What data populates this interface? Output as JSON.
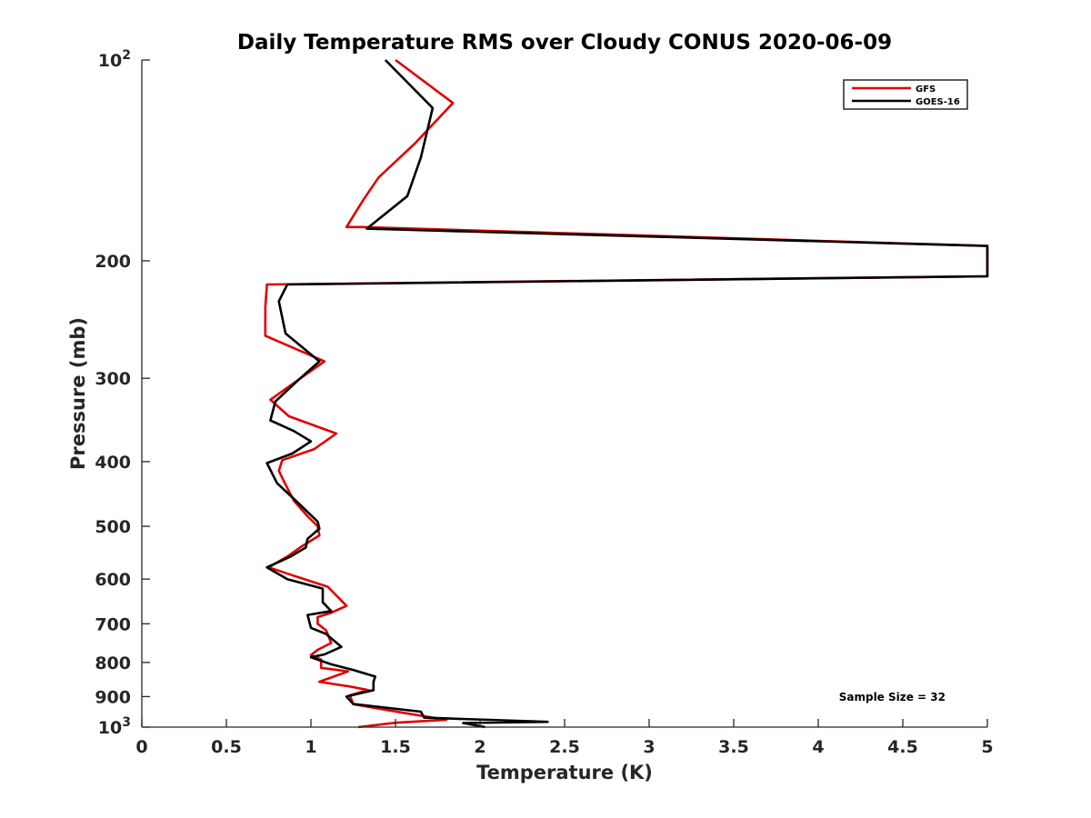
{
  "chart_data": {
    "type": "line",
    "title": "Daily Temperature RMS over Cloudy CONUS 2020-06-09",
    "xlabel": "Temperature (K)",
    "ylabel": "Pressure (mb)",
    "xlim": [
      0,
      5
    ],
    "ylim": [
      100,
      1000
    ],
    "yscale": "log",
    "y_reversed": true,
    "grid": false,
    "legend_position": "top-right",
    "x_ticks": [
      "0",
      "0.5",
      "1",
      "1.5",
      "2",
      "2.5",
      "3",
      "3.5",
      "4",
      "4.5",
      "5"
    ],
    "y_ticks": [
      {
        "value": 100,
        "base": "10",
        "exp": "2"
      },
      {
        "value": 200,
        "label": "200"
      },
      {
        "value": 300,
        "label": "300"
      },
      {
        "value": 400,
        "label": "400"
      },
      {
        "value": 500,
        "label": "500"
      },
      {
        "value": 600,
        "label": "600"
      },
      {
        "value": 700,
        "label": "700"
      },
      {
        "value": 800,
        "label": "800"
      },
      {
        "value": 900,
        "label": "900"
      },
      {
        "value": 1000,
        "base": "10",
        "exp": "3"
      }
    ],
    "annotation": "Sample Size = 32",
    "series": [
      {
        "name": "GFS",
        "color": "#e00000",
        "points": [
          [
            1.5,
            100
          ],
          [
            1.84,
            116
          ],
          [
            1.62,
            133
          ],
          [
            1.4,
            150
          ],
          [
            1.31,
            162
          ],
          [
            1.21,
            178
          ],
          [
            1.3,
            178
          ],
          [
            5.0,
            190
          ],
          [
            5.0,
            211
          ],
          [
            0.74,
            217
          ],
          [
            0.73,
            235
          ],
          [
            0.73,
            259
          ],
          [
            1.08,
            283
          ],
          [
            0.93,
            301
          ],
          [
            0.76,
            323
          ],
          [
            0.87,
            342
          ],
          [
            1.15,
            363
          ],
          [
            1.02,
            383
          ],
          [
            0.83,
            398
          ],
          [
            0.81,
            413
          ],
          [
            0.85,
            433
          ],
          [
            0.9,
            458
          ],
          [
            0.98,
            483
          ],
          [
            1.04,
            500
          ],
          [
            1.05,
            516
          ],
          [
            0.95,
            535
          ],
          [
            0.86,
            555
          ],
          [
            0.75,
            576
          ],
          [
            0.88,
            591
          ],
          [
            1.1,
            616
          ],
          [
            1.21,
            658
          ],
          [
            1.12,
            674
          ],
          [
            1.04,
            684
          ],
          [
            1.04,
            700
          ],
          [
            1.09,
            716
          ],
          [
            1.12,
            748
          ],
          [
            1.04,
            766
          ],
          [
            1.0,
            780
          ],
          [
            1.06,
            792
          ],
          [
            1.06,
            815
          ],
          [
            1.22,
            825
          ],
          [
            1.05,
            855
          ],
          [
            1.24,
            870
          ],
          [
            1.34,
            880
          ],
          [
            1.23,
            896
          ],
          [
            1.25,
            924
          ],
          [
            1.58,
            955
          ],
          [
            1.8,
            975
          ],
          [
            1.5,
            985
          ],
          [
            1.28,
            1000
          ]
        ]
      },
      {
        "name": "GOES-16",
        "color": "#000000",
        "points": [
          [
            1.44,
            100
          ],
          [
            1.72,
            118
          ],
          [
            1.65,
            140
          ],
          [
            1.57,
            160
          ],
          [
            1.33,
            179
          ],
          [
            5.0,
            190
          ],
          [
            5.0,
            211
          ],
          [
            0.86,
            217
          ],
          [
            0.81,
            230
          ],
          [
            0.85,
            257
          ],
          [
            1.05,
            283
          ],
          [
            0.93,
            301
          ],
          [
            0.79,
            325
          ],
          [
            0.76,
            347
          ],
          [
            0.9,
            360
          ],
          [
            1.0,
            373
          ],
          [
            0.89,
            389
          ],
          [
            0.74,
            402
          ],
          [
            0.8,
            431
          ],
          [
            0.92,
            460
          ],
          [
            1.04,
            492
          ],
          [
            1.05,
            504
          ],
          [
            0.98,
            522
          ],
          [
            0.97,
            538
          ],
          [
            0.88,
            555
          ],
          [
            0.74,
            576
          ],
          [
            0.86,
            600
          ],
          [
            1.07,
            620
          ],
          [
            1.07,
            650
          ],
          [
            1.12,
            670
          ],
          [
            0.98,
            679
          ],
          [
            1.0,
            710
          ],
          [
            1.09,
            725
          ],
          [
            1.18,
            758
          ],
          [
            1.08,
            778
          ],
          [
            1.0,
            786
          ],
          [
            1.12,
            805
          ],
          [
            1.25,
            821
          ],
          [
            1.38,
            840
          ],
          [
            1.37,
            855
          ],
          [
            1.37,
            880
          ],
          [
            1.21,
            900
          ],
          [
            1.25,
            923
          ],
          [
            1.65,
            948
          ],
          [
            1.67,
            968
          ],
          [
            2.4,
            982
          ],
          [
            1.9,
            986
          ],
          [
            2.03,
            1000
          ]
        ]
      }
    ]
  }
}
